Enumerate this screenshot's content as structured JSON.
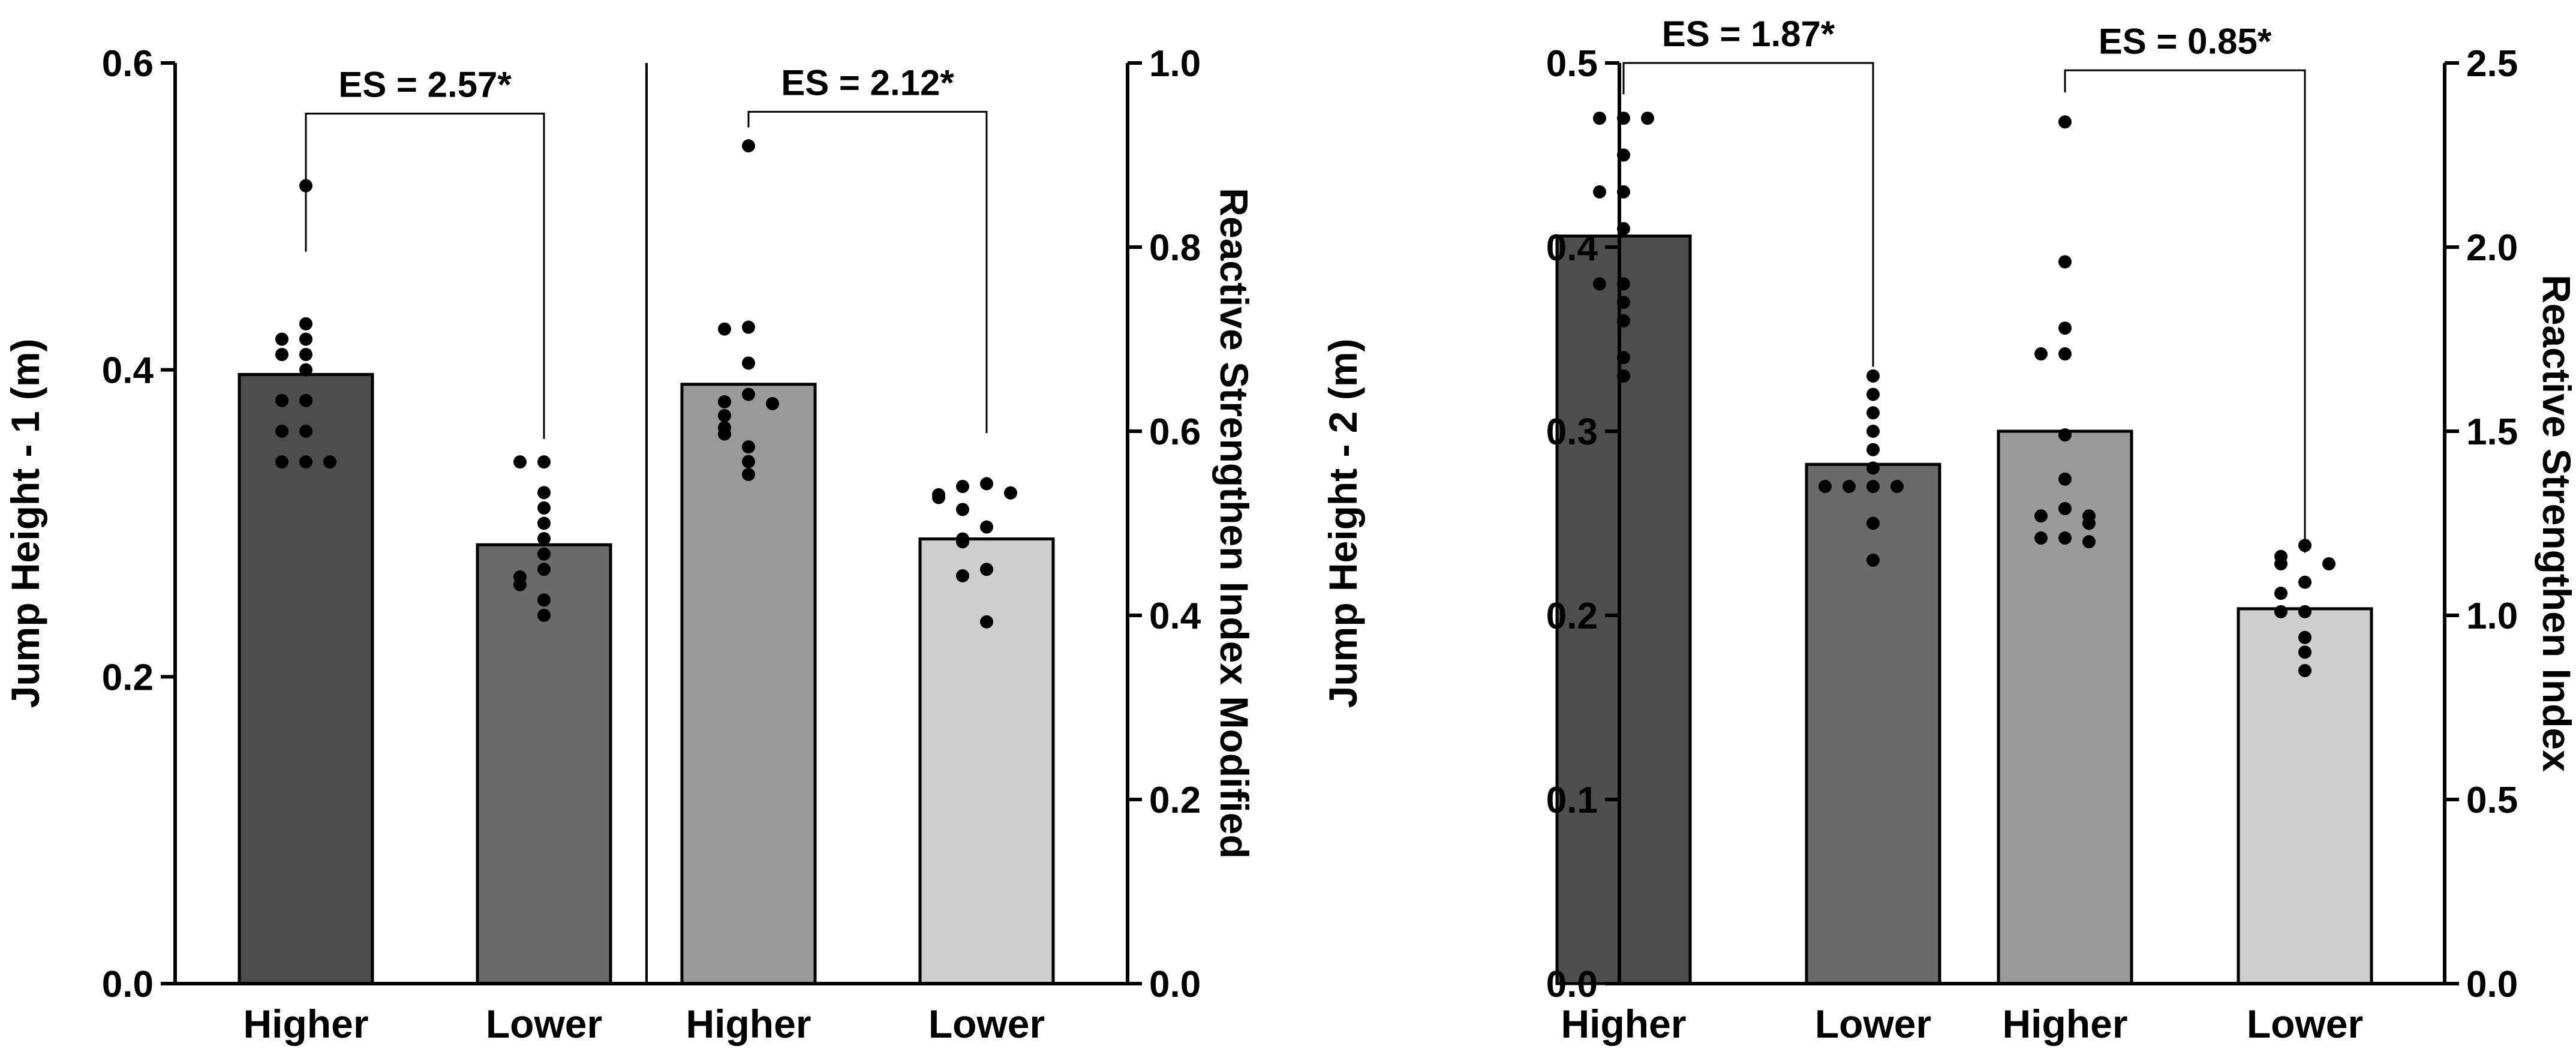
{
  "chart_data": [
    {
      "type": "bar",
      "panel": "left",
      "categories": [
        "Higher",
        "Lower",
        "Higher",
        "Lower"
      ],
      "left_axis": {
        "label": "Jump Height - 1 (m)",
        "range": [
          0,
          0.6
        ],
        "ticks": [
          "0.0",
          "0.2",
          "0.4",
          "0.6"
        ]
      },
      "right_axis": {
        "label": "Reactive Strengthen Index Modified",
        "range": [
          0,
          1.0
        ],
        "ticks": [
          "0.0",
          "0.2",
          "0.4",
          "0.6",
          "0.8",
          "1.0"
        ]
      },
      "bars": [
        {
          "category": "Higher",
          "axis": "left",
          "value": 0.397,
          "color": "#4d4d4d",
          "points": [
            0.52,
            0.43,
            0.42,
            0.42,
            0.41,
            0.41,
            0.4,
            0.38,
            0.38,
            0.36,
            0.36,
            0.34,
            0.34,
            0.34
          ]
        },
        {
          "category": "Lower",
          "axis": "left",
          "value": 0.286,
          "color": "#6a6a6a",
          "points": [
            0.34,
            0.34,
            0.32,
            0.31,
            0.3,
            0.29,
            0.28,
            0.27,
            0.265,
            0.26,
            0.25,
            0.24
          ]
        },
        {
          "category": "Higher",
          "axis": "right",
          "value": 0.651,
          "color": "#9a9a9a",
          "points": [
            0.91,
            0.713,
            0.711,
            0.674,
            0.64,
            0.632,
            0.63,
            0.617,
            0.604,
            0.597,
            0.583,
            0.567,
            0.553
          ]
        },
        {
          "category": "Lower",
          "axis": "right",
          "value": 0.483,
          "color": "#cecece",
          "points": [
            0.543,
            0.54,
            0.533,
            0.531,
            0.528,
            0.515,
            0.496,
            0.483,
            0.48,
            0.45,
            0.443,
            0.393
          ]
        }
      ],
      "annotations": [
        {
          "text": "ES = 2.57*",
          "from": 0,
          "to": 1,
          "top": 0.567,
          "from_end": 0.477,
          "to_end": 0.355,
          "axis": "left"
        },
        {
          "text": "ES = 2.12*",
          "from": 2,
          "to": 3,
          "top": 0.947,
          "from_end": 0.93,
          "to_end": 0.598,
          "axis": "right"
        }
      ]
    },
    {
      "type": "bar",
      "panel": "right",
      "categories": [
        "Higher",
        "Lower",
        "Higher",
        "Lower"
      ],
      "left_axis": {
        "label": "Jump Height - 2 (m)",
        "range": [
          0,
          0.5
        ],
        "ticks": [
          "0.0",
          "0.1",
          "0.2",
          "0.3",
          "0.4",
          "0.5"
        ]
      },
      "right_axis": {
        "label": "Reactive Strengthen Index",
        "range": [
          0,
          2.5
        ],
        "ticks": [
          "0.0",
          "0.5",
          "1.0",
          "1.5",
          "2.0",
          "2.5"
        ]
      },
      "bars": [
        {
          "category": "Higher",
          "axis": "left",
          "value": 0.406,
          "color": "#4d4d4d",
          "points": [
            0.47,
            0.47,
            0.47,
            0.45,
            0.43,
            0.43,
            0.41,
            0.38,
            0.38,
            0.37,
            0.36,
            0.34,
            0.33
          ]
        },
        {
          "category": "Lower",
          "axis": "left",
          "value": 0.282,
          "color": "#6a6a6a",
          "points": [
            0.33,
            0.32,
            0.31,
            0.3,
            0.29,
            0.28,
            0.27,
            0.27,
            0.27,
            0.27,
            0.25,
            0.23
          ]
        },
        {
          "category": "Higher",
          "axis": "right",
          "value": 1.5,
          "color": "#9a9a9a",
          "points": [
            2.34,
            1.96,
            1.78,
            1.71,
            1.71,
            1.49,
            1.37,
            1.29,
            1.27,
            1.27,
            1.25,
            1.21,
            1.21,
            1.2
          ]
        },
        {
          "category": "Lower",
          "axis": "right",
          "value": 1.018,
          "color": "#cecece",
          "points": [
            1.19,
            1.16,
            1.14,
            1.14,
            1.09,
            1.06,
            1.01,
            1.01,
            0.94,
            0.9,
            0.85
          ]
        }
      ],
      "annotations": [
        {
          "text": "ES = 1.87*",
          "from": 0,
          "to": 1,
          "top": 0.5,
          "from_end": 0.483,
          "to_end": 0.335,
          "axis": "left"
        },
        {
          "text": "ES = 0.85*",
          "from": 2,
          "to": 3,
          "top": 2.48,
          "from_end": 2.42,
          "to_end": 1.17,
          "axis": "right"
        }
      ]
    }
  ]
}
